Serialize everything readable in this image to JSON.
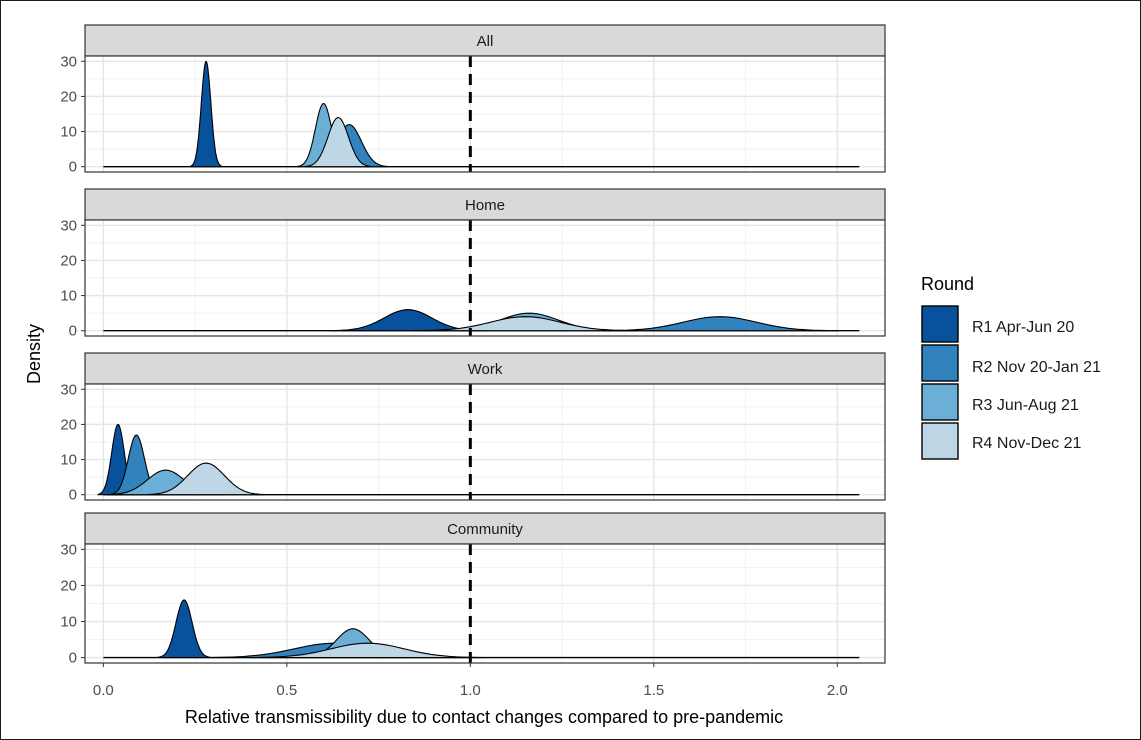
{
  "chart_data": {
    "type": "area",
    "chart_kind": "faceted density plot",
    "xlabel": "Relative transmissibility due to contact changes compared to pre-pandemic",
    "ylabel": "Density",
    "xlim": [
      -0.05,
      2.13
    ],
    "ylim": [
      -1.5,
      31.5
    ],
    "x_ticks": [
      0.0,
      0.5,
      1.0,
      1.5,
      2.0
    ],
    "x_tick_labels": [
      "0.0",
      "0.5",
      "1.0",
      "1.5",
      "2.0"
    ],
    "y_ticks": [
      0,
      10,
      20,
      30
    ],
    "y_tick_labels": [
      "0",
      "10",
      "20",
      "30"
    ],
    "reference_line": {
      "x": 1.0,
      "style": "dashed"
    },
    "x_support": [
      0.0,
      2.06
    ],
    "grid": true,
    "legend": {
      "title": "Round",
      "position": "right",
      "entries": [
        "R1 Apr-Jun 20",
        "R2 Nov 20-Jan 21",
        "R3 Jun-Aug 21",
        "R4 Nov-Dec 21"
      ],
      "colors": [
        "#08519c",
        "#3182bd",
        "#6baed6",
        "#bdd7e7"
      ]
    },
    "facets": [
      {
        "label": "All",
        "series": [
          {
            "round": "R1 Apr-Jun 20",
            "mode": 0.28,
            "peak_density": 30,
            "sd": 0.013
          },
          {
            "round": "R2 Nov 20-Jan 21",
            "mode": 0.67,
            "peak_density": 12,
            "sd": 0.033
          },
          {
            "round": "R3 Jun-Aug 21",
            "mode": 0.6,
            "peak_density": 18,
            "sd": 0.022
          },
          {
            "round": "R4 Nov-Dec 21",
            "mode": 0.64,
            "peak_density": 14,
            "sd": 0.028
          }
        ]
      },
      {
        "label": "Home",
        "series": [
          {
            "round": "R1 Apr-Jun 20",
            "mode": 0.83,
            "peak_density": 6,
            "sd": 0.065
          },
          {
            "round": "R2 Nov 20-Jan 21",
            "mode": 1.68,
            "peak_density": 4,
            "sd": 0.1
          },
          {
            "round": "R3 Jun-Aug 21",
            "mode": 1.16,
            "peak_density": 5,
            "sd": 0.08
          },
          {
            "round": "R4 Nov-Dec 21",
            "mode": 1.15,
            "peak_density": 4,
            "sd": 0.095
          }
        ]
      },
      {
        "label": "Work",
        "series": [
          {
            "round": "R1 Apr-Jun 20",
            "mode": 0.04,
            "peak_density": 20,
            "sd": 0.017
          },
          {
            "round": "R2 Nov 20-Jan 21",
            "mode": 0.09,
            "peak_density": 17,
            "sd": 0.022
          },
          {
            "round": "R3 Jun-Aug 21",
            "mode": 0.17,
            "peak_density": 7,
            "sd": 0.05
          },
          {
            "round": "R4 Nov-Dec 21",
            "mode": 0.28,
            "peak_density": 9,
            "sd": 0.05
          }
        ]
      },
      {
        "label": "Community",
        "series": [
          {
            "round": "R1 Apr-Jun 20",
            "mode": 0.22,
            "peak_density": 16,
            "sd": 0.022
          },
          {
            "round": "R2 Nov 20-Jan 21",
            "mode": 0.63,
            "peak_density": 4,
            "sd": 0.11
          },
          {
            "round": "R3 Jun-Aug 21",
            "mode": 0.68,
            "peak_density": 8,
            "sd": 0.045
          },
          {
            "round": "R4 Nov-Dec 21",
            "mode": 0.72,
            "peak_density": 4,
            "sd": 0.1
          }
        ]
      }
    ]
  }
}
